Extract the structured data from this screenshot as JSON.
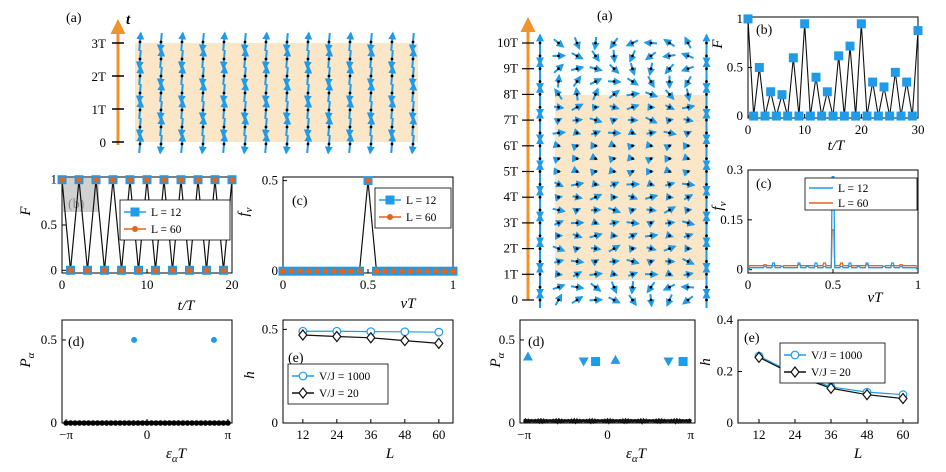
{
  "colors": {
    "blue": "#1f9be8",
    "orange": "#f0932b",
    "red": "#e0651f",
    "band": "#fbe6c8",
    "axis_arrow": "#f0932b",
    "dark": "#111111"
  },
  "left_figure": {
    "panel_a": {
      "label": "(a)",
      "axis_label": "t",
      "ytick_labels": [
        "0",
        "1T",
        "2T",
        "3T"
      ]
    },
    "panel_b": {
      "label": "(b)",
      "ylabel": "F",
      "xlabel": "t/T",
      "xticks": [
        "0",
        "10",
        "20"
      ],
      "yticks": [
        "0",
        "0.5",
        "1"
      ],
      "legend": [
        "L = 12",
        "L = 60"
      ]
    },
    "panel_c": {
      "label": "(c)",
      "ylabel": "f",
      "ylabel_sub": "ν",
      "xlabel": "νT",
      "xticks": [
        "0",
        "0.5",
        "1"
      ],
      "yticks": [
        "0",
        "0.5"
      ],
      "legend": [
        "L = 12",
        "L = 60"
      ]
    },
    "panel_d": {
      "label": "(d)",
      "ylabel": "P",
      "ylabel_sub": "α",
      "xlabel": "ε",
      "xlabel_sub": "α",
      "xlabel_tail": "T",
      "xticks": [
        "−π",
        "0",
        "π"
      ],
      "yticks": [
        "0",
        "0.5"
      ]
    },
    "panel_e": {
      "label": "(e)",
      "ylabel": "h",
      "xlabel": "L",
      "xticks": [
        "12",
        "24",
        "36",
        "48",
        "60"
      ],
      "yticks": [
        "0",
        "0.5"
      ],
      "legend": [
        "V/J = 1000",
        "V/J = 20"
      ]
    }
  },
  "right_figure": {
    "panel_a": {
      "label": "(a)",
      "ytick_labels": [
        "0",
        "1T",
        "2T",
        "3T",
        "4T",
        "5T",
        "6T",
        "7T",
        "8T",
        "9T",
        "10T"
      ]
    },
    "panel_b": {
      "label": "(b)",
      "ylabel": "F",
      "xlabel": "t/T",
      "xticks": [
        "0",
        "10",
        "20",
        "30"
      ],
      "yticks": [
        "0",
        "0.5",
        "1"
      ]
    },
    "panel_c": {
      "label": "(c)",
      "ylabel": "f",
      "ylabel_sub": "ν",
      "xlabel": "νT",
      "xticks": [
        "0",
        "0.5",
        "1"
      ],
      "yticks": [
        "0",
        "0.15",
        "0.3"
      ],
      "legend": [
        "L = 12",
        "L = 60"
      ]
    },
    "panel_d": {
      "label": "(d)",
      "ylabel": "P",
      "ylabel_sub": "α",
      "xlabel": "ε",
      "xlabel_sub": "α",
      "xlabel_tail": "T",
      "xticks": [
        "−π",
        "0",
        "π"
      ],
      "yticks": [
        "0",
        "0.5"
      ]
    },
    "panel_e": {
      "label": "(e)",
      "ylabel": "h",
      "xlabel": "L",
      "xticks": [
        "12",
        "24",
        "36",
        "48",
        "60"
      ],
      "yticks": [
        "0",
        "0.2",
        "0.4"
      ],
      "legend": [
        "V/J = 1000",
        "V/J = 20"
      ]
    }
  },
  "chart_data": [
    {
      "id": "left-b",
      "type": "line",
      "x": [
        0,
        1,
        2,
        3,
        4,
        5,
        6,
        7,
        8,
        9,
        10,
        11,
        12,
        13,
        14,
        15,
        16,
        17,
        18,
        19,
        20
      ],
      "series": [
        {
          "name": "L = 12",
          "values": [
            1,
            0,
            1,
            0,
            1,
            0,
            1,
            0,
            1,
            0,
            1,
            0,
            1,
            0,
            1,
            0,
            1,
            0,
            1,
            0,
            1
          ]
        },
        {
          "name": "L = 60",
          "values": [
            1,
            0,
            1,
            0,
            1,
            0,
            1,
            0,
            1,
            0,
            1,
            0,
            1,
            0,
            1,
            0,
            1,
            0,
            1,
            0,
            1
          ]
        }
      ],
      "xlim": [
        0,
        20
      ],
      "ylim": [
        0,
        1
      ]
    },
    {
      "id": "left-c",
      "type": "line",
      "series": [
        {
          "name": "L = 12",
          "x": [
            0,
            0.05,
            0.1,
            0.15,
            0.2,
            0.25,
            0.3,
            0.35,
            0.4,
            0.45,
            0.5,
            0.55,
            0.6,
            0.65,
            0.7,
            0.75,
            0.8,
            0.85,
            0.9,
            0.95,
            1
          ],
          "values": [
            0,
            0,
            0,
            0,
            0,
            0,
            0,
            0,
            0,
            0,
            0.5,
            0,
            0,
            0,
            0,
            0,
            0,
            0,
            0,
            0,
            0
          ]
        },
        {
          "name": "L = 60",
          "x": [
            0,
            0.05,
            0.1,
            0.15,
            0.2,
            0.25,
            0.3,
            0.35,
            0.4,
            0.45,
            0.5,
            0.55,
            0.6,
            0.65,
            0.7,
            0.75,
            0.8,
            0.85,
            0.9,
            0.95,
            1
          ],
          "values": [
            0,
            0,
            0,
            0,
            0,
            0,
            0,
            0,
            0,
            0,
            0.5,
            0,
            0,
            0,
            0,
            0,
            0,
            0,
            0,
            0,
            0
          ]
        }
      ],
      "xlim": [
        0,
        1
      ],
      "ylim": [
        0,
        0.5
      ]
    },
    {
      "id": "left-d",
      "type": "scatter",
      "x": [
        -0.5,
        2.6
      ],
      "values": [
        0.5,
        0.5
      ],
      "xlim": [
        -3.3,
        3.3
      ],
      "ylim": [
        0,
        0.62
      ]
    },
    {
      "id": "left-e",
      "type": "line",
      "x": [
        12,
        24,
        36,
        48,
        60
      ],
      "series": [
        {
          "name": "V/J = 1000",
          "values": [
            0.49,
            0.49,
            0.488,
            0.487,
            0.485
          ]
        },
        {
          "name": "V/J = 20",
          "values": [
            0.47,
            0.462,
            0.455,
            0.44,
            0.425
          ]
        }
      ],
      "xlim": [
        5,
        65
      ],
      "ylim": [
        0,
        0.55
      ]
    },
    {
      "id": "right-b",
      "type": "line",
      "x": [
        0,
        1,
        2,
        3,
        4,
        5,
        6,
        7,
        8,
        9,
        10,
        11,
        12,
        13,
        14,
        15,
        16,
        17,
        18,
        19,
        20,
        21,
        22,
        23,
        24,
        25,
        26,
        27,
        28,
        29,
        30
      ],
      "values": [
        1,
        0,
        0.5,
        0,
        0.25,
        0,
        0.22,
        0,
        0.6,
        0,
        0.95,
        0,
        0.4,
        0,
        0.25,
        0,
        0.62,
        0,
        0.72,
        0,
        0.95,
        0,
        0.35,
        0,
        0.3,
        0,
        0.45,
        0,
        0.35,
        0,
        0.88
      ],
      "xlim": [
        0,
        30
      ],
      "ylim": [
        0,
        1
      ]
    },
    {
      "id": "right-c",
      "type": "line",
      "series": [
        {
          "name": "L = 12",
          "x": [
            0,
            0.1,
            0.15,
            0.2,
            0.3,
            0.35,
            0.4,
            0.45,
            0.5,
            0.55,
            0.6,
            0.65,
            0.7,
            0.8,
            0.85,
            0.9,
            1
          ],
          "values": [
            0,
            0.01,
            0.02,
            0.01,
            0.02,
            0.01,
            0.02,
            0.01,
            0.28,
            0.01,
            0.02,
            0.01,
            0.02,
            0.01,
            0.02,
            0.01,
            0
          ]
        },
        {
          "name": "L = 60",
          "x": [
            0,
            0.1,
            0.2,
            0.3,
            0.4,
            0.45,
            0.5,
            0.55,
            0.6,
            0.7,
            0.8,
            0.9,
            1
          ],
          "values": [
            0.01,
            0.015,
            0.01,
            0.015,
            0.01,
            0.02,
            0.12,
            0.02,
            0.01,
            0.015,
            0.01,
            0.015,
            0.01
          ]
        }
      ],
      "xlim": [
        0,
        1
      ],
      "ylim": [
        0,
        0.3
      ]
    },
    {
      "id": "right-d",
      "type": "scatter",
      "points": [
        {
          "x": -3.0,
          "y": 0.4,
          "marker": "triangle-up"
        },
        {
          "x": -0.9,
          "y": 0.37,
          "marker": "triangle-down"
        },
        {
          "x": -0.45,
          "y": 0.37,
          "marker": "square"
        },
        {
          "x": 0.3,
          "y": 0.38,
          "marker": "triangle-up"
        },
        {
          "x": 2.3,
          "y": 0.37,
          "marker": "triangle-down"
        },
        {
          "x": 2.85,
          "y": 0.37,
          "marker": "square"
        }
      ],
      "xlim": [
        -3.3,
        3.3
      ],
      "ylim": [
        0,
        0.62
      ]
    },
    {
      "id": "right-e",
      "type": "line",
      "x": [
        12,
        24,
        36,
        48,
        60
      ],
      "series": [
        {
          "name": "V/J = 1000",
          "values": [
            0.26,
            0.19,
            0.14,
            0.12,
            0.11
          ]
        },
        {
          "name": "V/J = 20",
          "values": [
            0.255,
            0.185,
            0.135,
            0.11,
            0.095
          ]
        }
      ],
      "xlim": [
        5,
        65
      ],
      "ylim": [
        0,
        0.4
      ]
    }
  ]
}
